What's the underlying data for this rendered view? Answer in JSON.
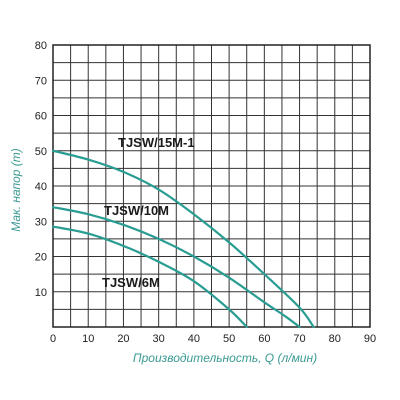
{
  "chart_data": {
    "type": "line",
    "title": "",
    "xlabel": "Производительность, Q (л/мин)",
    "ylabel": "Мак. напор (m)",
    "xlim": [
      0,
      90
    ],
    "ylim": [
      0,
      80
    ],
    "x_ticks": [
      "0",
      "10",
      "20",
      "30",
      "40",
      "50",
      "60",
      "70",
      "80",
      "90"
    ],
    "y_ticks": [
      "10",
      "20",
      "30",
      "40",
      "50",
      "60",
      "70",
      "80"
    ],
    "grid": true,
    "line_color": "#2a9d93",
    "series": [
      {
        "name": "TJSW/15M-1",
        "points": [
          [
            0,
            50
          ],
          [
            10,
            47.5
          ],
          [
            20,
            44
          ],
          [
            30,
            39
          ],
          [
            40,
            32
          ],
          [
            50,
            24
          ],
          [
            60,
            15
          ],
          [
            70,
            5.5
          ],
          [
            74,
            0
          ]
        ]
      },
      {
        "name": "TJSW/10M",
        "points": [
          [
            0,
            34
          ],
          [
            10,
            32
          ],
          [
            20,
            29
          ],
          [
            30,
            25
          ],
          [
            40,
            20
          ],
          [
            50,
            14
          ],
          [
            60,
            7
          ],
          [
            66,
            3
          ],
          [
            70,
            0
          ]
        ]
      },
      {
        "name": "TJSW/6M",
        "points": [
          [
            0,
            28.5
          ],
          [
            10,
            26.5
          ],
          [
            20,
            23
          ],
          [
            30,
            18.5
          ],
          [
            40,
            13
          ],
          [
            50,
            5
          ],
          [
            55,
            0
          ]
        ]
      }
    ]
  }
}
